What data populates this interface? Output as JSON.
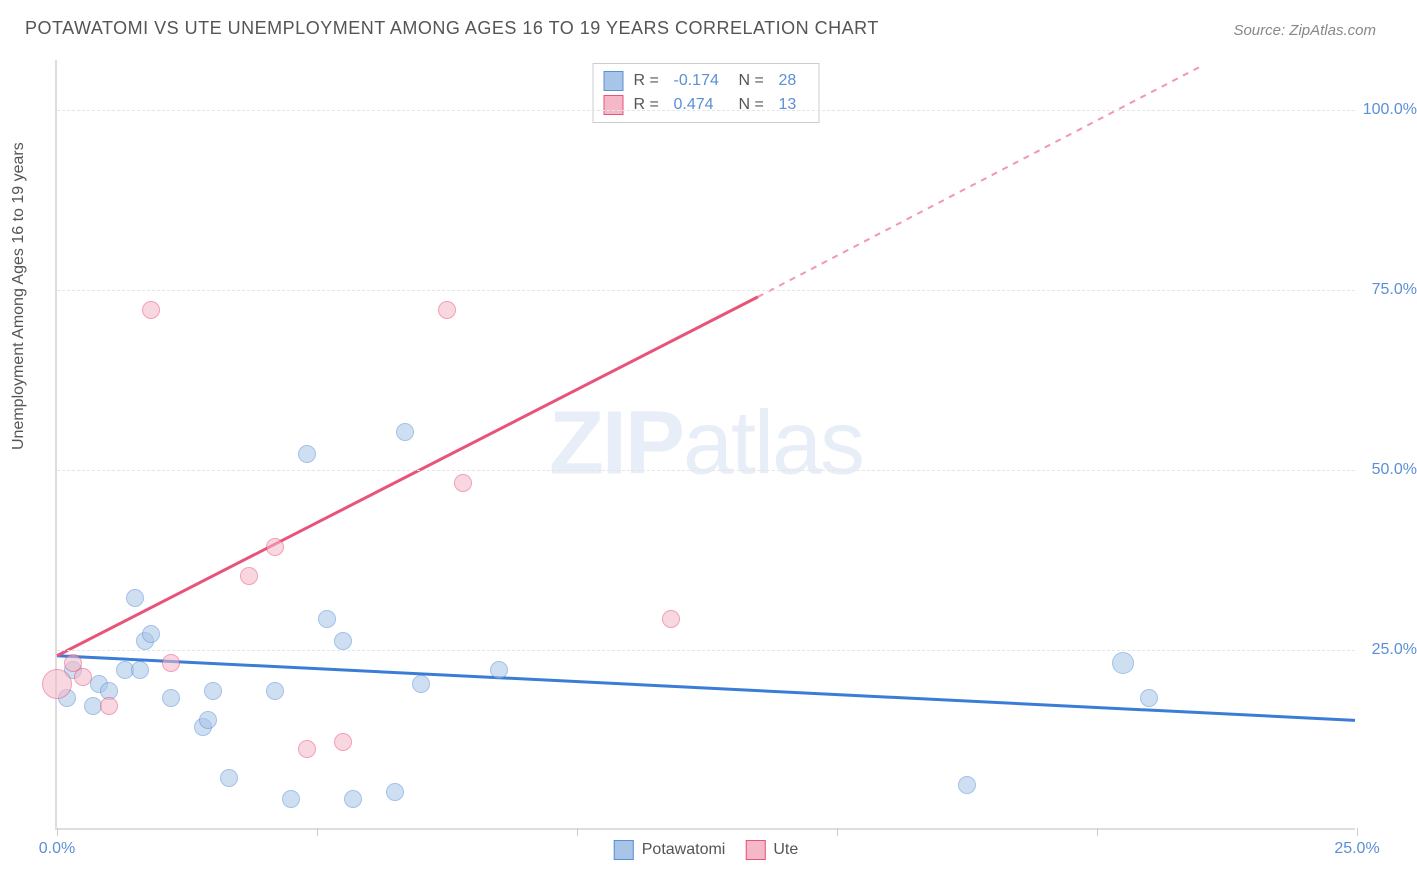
{
  "title": "POTAWATOMI VS UTE UNEMPLOYMENT AMONG AGES 16 TO 19 YEARS CORRELATION CHART",
  "source": "Source: ZipAtlas.com",
  "ylabel": "Unemployment Among Ages 16 to 19 years",
  "watermark_bold": "ZIP",
  "watermark_rest": "atlas",
  "chart": {
    "type": "scatter",
    "xlim": [
      0,
      25
    ],
    "ylim": [
      0,
      107
    ],
    "xticks": [
      0,
      5,
      10,
      15,
      20,
      25
    ],
    "xtick_labels": {
      "0": "0.0%",
      "25": "25.0%"
    },
    "yticks": [
      25,
      50,
      75,
      100
    ],
    "ytick_labels": [
      "25.0%",
      "50.0%",
      "75.0%",
      "100.0%"
    ],
    "background_color": "#ffffff",
    "grid_color": "#e5e5e5",
    "axis_color": "#dddddd",
    "tick_text_color": "#5b8fd6",
    "series": [
      {
        "name": "Potawatomi",
        "fill": "#a8c5e8",
        "stroke": "#5b8fd6",
        "line_color": "#3b7dd6",
        "marker_radius": 9,
        "fill_opacity": 0.55,
        "R": "-0.174",
        "N": "28",
        "trend": {
          "x1": 0,
          "y1": 24,
          "x2": 25,
          "y2": 15
        },
        "points": [
          {
            "x": 0.2,
            "y": 18,
            "r": 9
          },
          {
            "x": 0.3,
            "y": 22,
            "r": 9
          },
          {
            "x": 0.7,
            "y": 17,
            "r": 9
          },
          {
            "x": 0.8,
            "y": 20,
            "r": 9
          },
          {
            "x": 1.0,
            "y": 19,
            "r": 9
          },
          {
            "x": 1.3,
            "y": 22,
            "r": 9
          },
          {
            "x": 1.5,
            "y": 32,
            "r": 9
          },
          {
            "x": 1.6,
            "y": 22,
            "r": 9
          },
          {
            "x": 1.7,
            "y": 26,
            "r": 9
          },
          {
            "x": 1.8,
            "y": 27,
            "r": 9
          },
          {
            "x": 2.2,
            "y": 18,
            "r": 9
          },
          {
            "x": 2.8,
            "y": 14,
            "r": 9
          },
          {
            "x": 2.9,
            "y": 15,
            "r": 9
          },
          {
            "x": 3.0,
            "y": 19,
            "r": 9
          },
          {
            "x": 3.3,
            "y": 7,
            "r": 9
          },
          {
            "x": 4.2,
            "y": 19,
            "r": 9
          },
          {
            "x": 4.5,
            "y": 4,
            "r": 9
          },
          {
            "x": 4.8,
            "y": 52,
            "r": 9
          },
          {
            "x": 5.2,
            "y": 29,
            "r": 9
          },
          {
            "x": 5.5,
            "y": 26,
            "r": 9
          },
          {
            "x": 5.7,
            "y": 4,
            "r": 9
          },
          {
            "x": 6.5,
            "y": 5,
            "r": 9
          },
          {
            "x": 6.7,
            "y": 55,
            "r": 9
          },
          {
            "x": 7.0,
            "y": 20,
            "r": 9
          },
          {
            "x": 8.5,
            "y": 22,
            "r": 9
          },
          {
            "x": 17.5,
            "y": 6,
            "r": 9
          },
          {
            "x": 20.5,
            "y": 23,
            "r": 11
          },
          {
            "x": 21.0,
            "y": 18,
            "r": 9
          }
        ]
      },
      {
        "name": "Ute",
        "fill": "#f5b8c8",
        "stroke": "#e8537a",
        "line_color": "#e8537a",
        "marker_radius": 9,
        "fill_opacity": 0.55,
        "R": "0.474",
        "N": "13",
        "trend": {
          "x1": 0,
          "y1": 24,
          "x2": 13.5,
          "y2": 74
        },
        "trend_dash": {
          "x1": 13.5,
          "y1": 74,
          "x2": 22,
          "y2": 106
        },
        "points": [
          {
            "x": 0.0,
            "y": 20,
            "r": 15
          },
          {
            "x": 0.3,
            "y": 23,
            "r": 9
          },
          {
            "x": 0.5,
            "y": 21,
            "r": 9
          },
          {
            "x": 1.0,
            "y": 17,
            "r": 9
          },
          {
            "x": 1.8,
            "y": 72,
            "r": 9
          },
          {
            "x": 2.2,
            "y": 23,
            "r": 9
          },
          {
            "x": 3.7,
            "y": 35,
            "r": 9
          },
          {
            "x": 4.2,
            "y": 39,
            "r": 9
          },
          {
            "x": 4.8,
            "y": 11,
            "r": 9
          },
          {
            "x": 5.5,
            "y": 12,
            "r": 9
          },
          {
            "x": 7.5,
            "y": 72,
            "r": 9
          },
          {
            "x": 7.8,
            "y": 48,
            "r": 9
          },
          {
            "x": 11.8,
            "y": 29,
            "r": 9
          }
        ]
      }
    ]
  },
  "legend_bottom": [
    {
      "label": "Potawatomi",
      "fill": "#a8c5e8",
      "stroke": "#5b8fd6"
    },
    {
      "label": "Ute",
      "fill": "#f5b8c8",
      "stroke": "#e8537a"
    }
  ]
}
